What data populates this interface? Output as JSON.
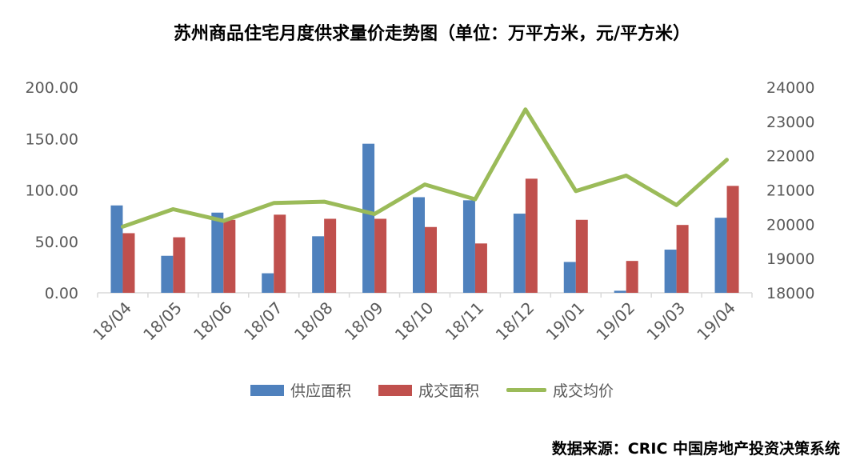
{
  "chart_data": {
    "type": "bar",
    "title": "苏州商品住宅月度供求量价走势图（单位：万平方米，元/平方米）",
    "categories": [
      "18/04",
      "18/05",
      "18/06",
      "18/07",
      "18/08",
      "18/09",
      "18/10",
      "18/11",
      "18/12",
      "19/01",
      "19/02",
      "19/03",
      "19/04"
    ],
    "series": [
      {
        "name": "供应面积",
        "type": "bar",
        "axis": "left",
        "color": "#4F81BD",
        "values": [
          85,
          36,
          78,
          19,
          55,
          145,
          93,
          90,
          77,
          30,
          2,
          42,
          73
        ]
      },
      {
        "name": "成交面积",
        "type": "bar",
        "axis": "left",
        "color": "#C0504D",
        "values": [
          58,
          54,
          71,
          76,
          72,
          72,
          64,
          48,
          111,
          71,
          31,
          66,
          104
        ]
      },
      {
        "name": "成交均价",
        "type": "line",
        "axis": "right",
        "color": "#9BBB59",
        "values": [
          19930,
          20440,
          20100,
          20620,
          20660,
          20300,
          21160,
          20730,
          23350,
          20970,
          21420,
          20560,
          21880
        ]
      }
    ],
    "left_axis": {
      "min": 0,
      "max": 200,
      "step": 50,
      "ticks": [
        "0.00",
        "50.00",
        "100.00",
        "150.00",
        "200.00"
      ]
    },
    "right_axis": {
      "min": 18000,
      "max": 24000,
      "step": 1000,
      "ticks": [
        "18000",
        "19000",
        "20000",
        "21000",
        "22000",
        "23000",
        "24000"
      ]
    },
    "legend_position": "bottom",
    "grid": false,
    "xlabel": "",
    "ylabel": ""
  },
  "source": "数据来源：CRIC 中国房地产投资决策系统"
}
